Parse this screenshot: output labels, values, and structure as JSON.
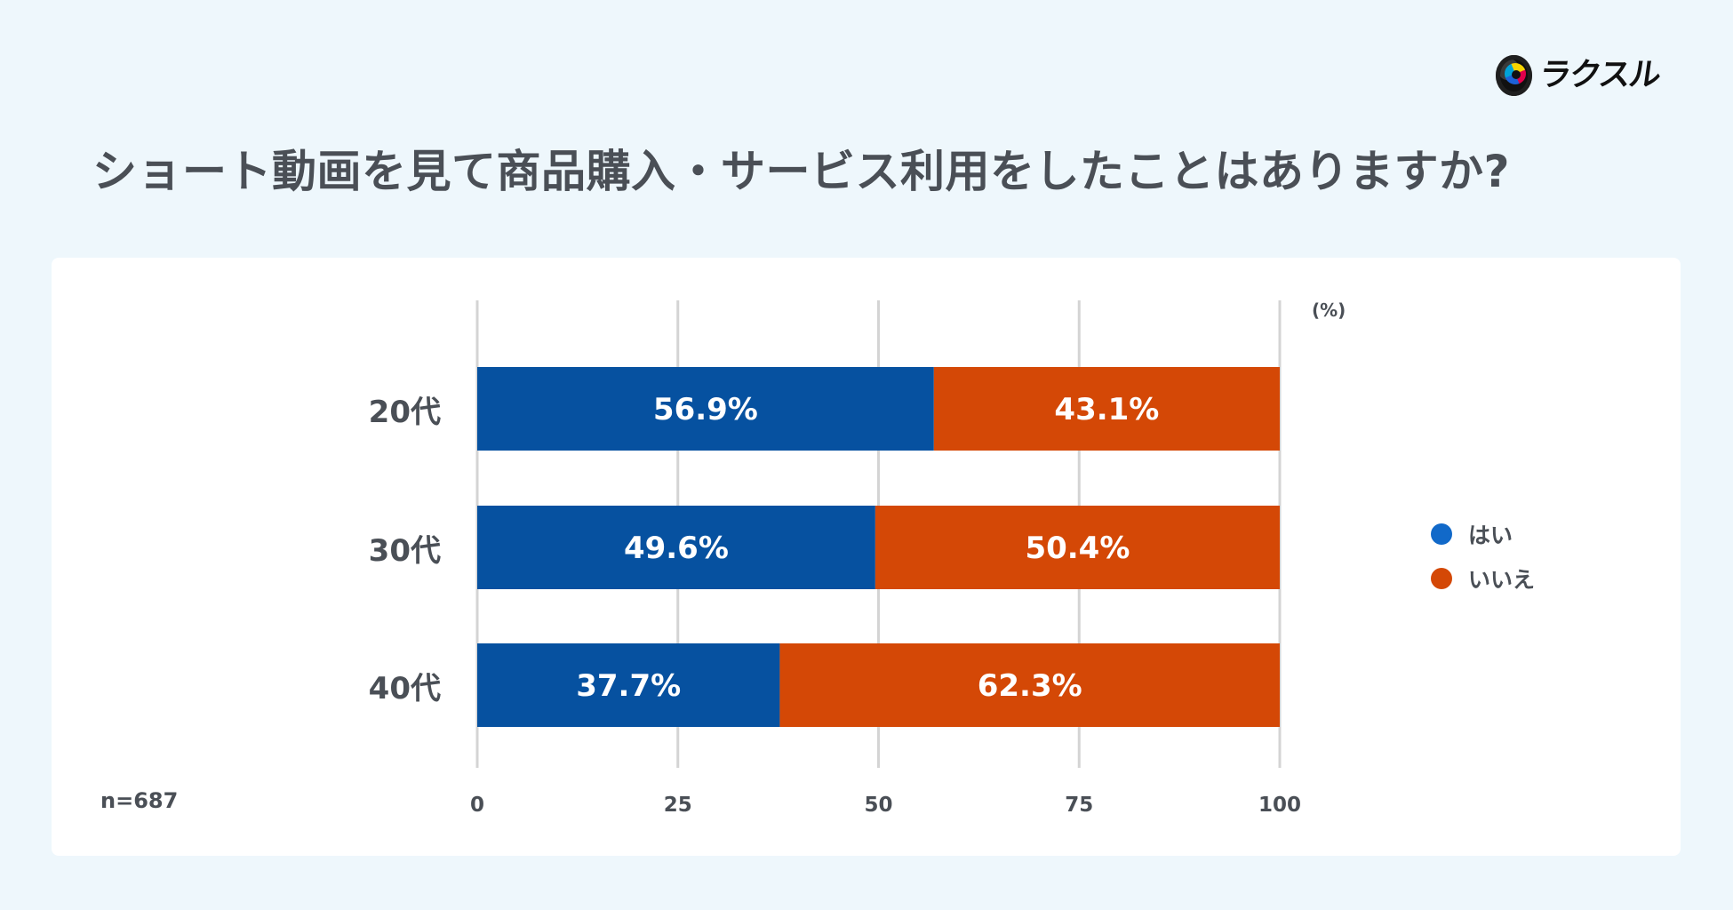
{
  "brand": {
    "name": "ラクスル"
  },
  "header": {
    "title": "ショート動画を見て商品購入・サービス利用をしたことはありますか?"
  },
  "chart_data": {
    "type": "bar",
    "orientation": "horizontal",
    "stacked": true,
    "categories": [
      "20代",
      "30代",
      "40代"
    ],
    "series": [
      {
        "name": "はい",
        "values": [
          56.9,
          49.6,
          37.7
        ],
        "labels": [
          "56.9%",
          "49.6%",
          "37.7%"
        ],
        "color": "#0651a0"
      },
      {
        "name": "いいえ",
        "values": [
          43.1,
          50.4,
          62.3
        ],
        "labels": [
          "43.1%",
          "50.4%",
          "62.3%"
        ],
        "color": "#d44806"
      }
    ],
    "x_ticks": [
      "0",
      "25",
      "50",
      "75",
      "100"
    ],
    "x_tick_values": [
      0,
      25,
      50,
      75,
      100
    ],
    "xlim": [
      0,
      100
    ],
    "unit_label": "(%)",
    "sample_size": "n=687",
    "legend_position": "right",
    "grid": true
  },
  "colors": {
    "background": "#eef7fc",
    "card": "#ffffff",
    "text": "#4a4f56",
    "grid": "#d4d4d4",
    "yes": "#0651a0",
    "no": "#d44806",
    "legend_yes": "#1169c9",
    "legend_no": "#d44806"
  }
}
